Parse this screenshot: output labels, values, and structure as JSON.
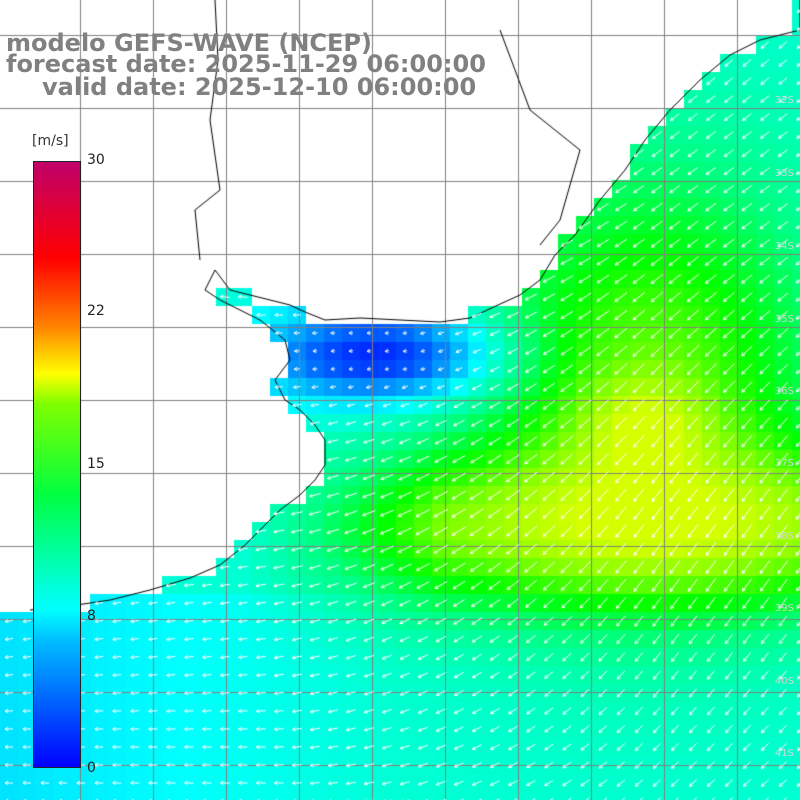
{
  "title": {
    "model": "modelo GEFS-WAVE (NCEP)",
    "forecast": "forecast date: 2025-11-29 06:00:00",
    "valid": "valid date: 2025-12-10 06:00:00"
  },
  "colorbar": {
    "unit": "[m/s]",
    "ticks": [
      "30",
      "22",
      "15",
      "8",
      "0"
    ],
    "tick_values": [
      30,
      22,
      15,
      8,
      0
    ],
    "colors": [
      "#0000ff",
      "#00bfff",
      "#00ffff",
      "#00ff40",
      "#7fff00",
      "#ffff00",
      "#ff8000",
      "#ff0000",
      "#c0006a"
    ]
  },
  "map": {
    "region": "South Atlantic off Uruguay / Rio de la Plata",
    "variable": "wind speed and direction",
    "land_color": "#ffffff",
    "coastline_color": "#000000",
    "grid_color": "#808080",
    "arrow_color": "#ffffff",
    "lat_labels": [
      "32S",
      "33S",
      "34S",
      "35S",
      "36S",
      "37S",
      "38S",
      "39S",
      "40S",
      "41S"
    ]
  }
}
